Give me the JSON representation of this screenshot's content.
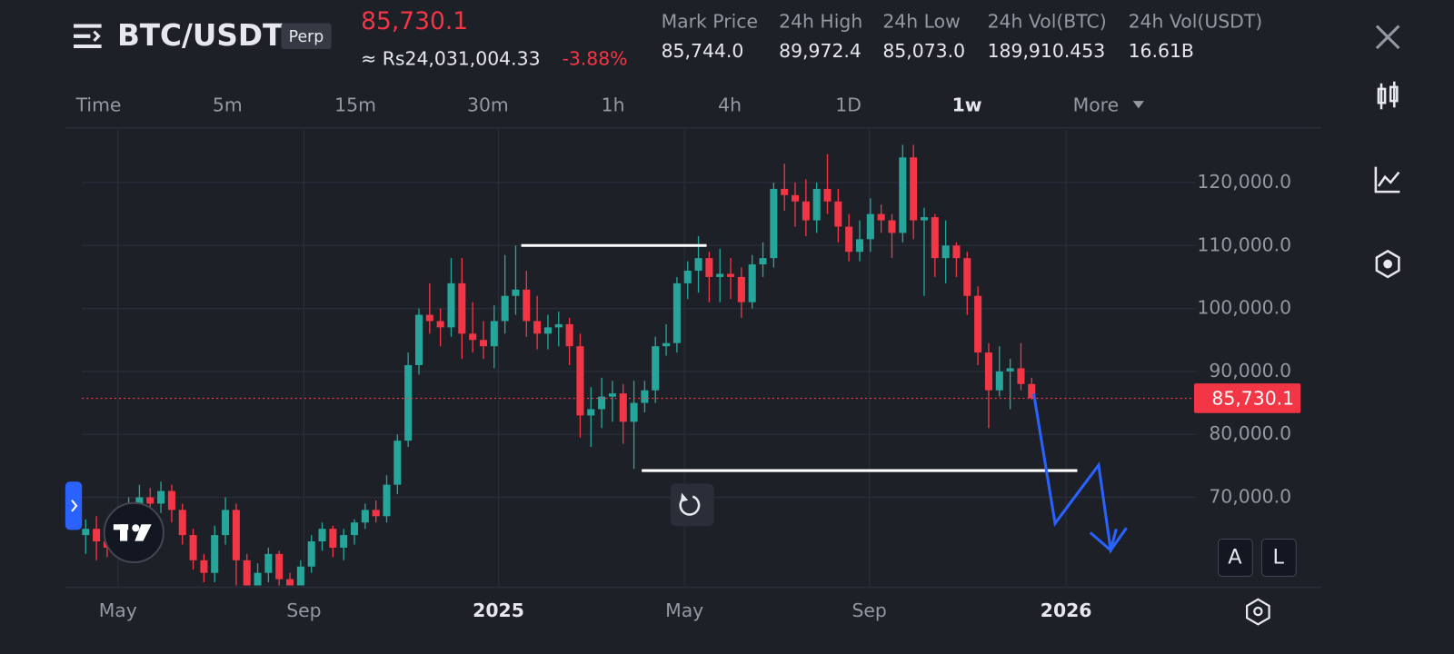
{
  "header": {
    "menu_symbol": "BTC/USDT",
    "badge": "Perp",
    "price": "85,730.1",
    "local_price": "≈ Rs24,031,004.33",
    "change": "-3.88%",
    "stats": [
      {
        "label": "Mark Price",
        "value": "85,744.0"
      },
      {
        "label": "24h High",
        "value": "89,972.4"
      },
      {
        "label": "24h Low",
        "value": "85,073.0"
      },
      {
        "label": "24h Vol(BTC)",
        "value": "189,910.453"
      },
      {
        "label": "24h Vol(USDT)",
        "value": "16.61B"
      }
    ]
  },
  "timeframes": {
    "items": [
      "Time",
      "5m",
      "15m",
      "30m",
      "1h",
      "4h",
      "1D",
      "1w",
      "More"
    ],
    "active": "1w"
  },
  "buttons": {
    "auto": "A",
    "log": "L"
  },
  "chart_data": {
    "type": "candlestick",
    "up_color": "#26a69a",
    "down_color": "#f23645",
    "open": [
      64000,
      65000,
      63000,
      62000,
      66000,
      68000,
      70000,
      69000,
      71000,
      68000,
      64000,
      60000,
      58000,
      64000,
      68000,
      60000,
      56000,
      58000,
      61000,
      57000,
      56000,
      59000,
      63000,
      65000,
      62000,
      64000,
      66000,
      68000,
      67000,
      72000,
      79000,
      91000,
      99000,
      98000,
      97000,
      104000,
      96000,
      95000,
      94000,
      98000,
      102000,
      103000,
      98000,
      96000,
      97000,
      97500,
      94000,
      83000,
      84000,
      86000,
      86500,
      82000,
      85000,
      87000,
      94000,
      94500,
      104000,
      106000,
      108000,
      105000,
      105500,
      105000,
      101000,
      107000,
      108000,
      119000,
      118000,
      117000,
      114000,
      119000,
      117000,
      113000,
      109000,
      111000,
      115000,
      114000,
      112000,
      124000,
      114000,
      114500,
      108000,
      110000,
      108000,
      102000,
      93000,
      87000,
      90000,
      90500,
      88000
    ],
    "high": [
      66500,
      67000,
      64500,
      67500,
      70000,
      72000,
      71500,
      72500,
      72000,
      69000,
      65000,
      61000,
      65500,
      70000,
      69000,
      61000,
      59500,
      62000,
      61500,
      58000,
      60000,
      64000,
      66000,
      65500,
      65000,
      66500,
      69000,
      69500,
      73500,
      80000,
      93000,
      100000,
      104000,
      100000,
      108000,
      108000,
      101000,
      98000,
      100500,
      108500,
      110000,
      106000,
      102000,
      99000,
      99500,
      98500,
      96000,
      87500,
      89000,
      88500,
      88000,
      88500,
      88500,
      95500,
      97500,
      105000,
      107500,
      111500,
      109000,
      109500,
      108000,
      106500,
      108500,
      110500,
      120000,
      123000,
      120000,
      120500,
      120000,
      124500,
      119000,
      115000,
      114000,
      117500,
      116500,
      115000,
      126000,
      126000,
      116000,
      115000,
      114000,
      110500,
      109000,
      103500,
      94500,
      94000,
      92000,
      94500,
      89000
    ],
    "low": [
      61000,
      60000,
      60500,
      60500,
      64500,
      66500,
      67000,
      67500,
      66000,
      62500,
      58500,
      56500,
      56500,
      62500,
      56000,
      54000,
      54500,
      56500,
      55500,
      54000,
      55000,
      58000,
      61500,
      60500,
      60000,
      62500,
      65000,
      66000,
      66000,
      70500,
      78000,
      89500,
      96000,
      94000,
      95500,
      92000,
      93000,
      92000,
      90500,
      96000,
      99000,
      95500,
      93500,
      93500,
      94000,
      91000,
      79500,
      78000,
      81000,
      82000,
      78500,
      74500,
      83500,
      85000,
      92500,
      93000,
      101500,
      102500,
      101000,
      101000,
      101500,
      98500,
      100000,
      105000,
      106500,
      115500,
      113000,
      111500,
      112000,
      115000,
      110500,
      107500,
      107500,
      109000,
      112000,
      108000,
      110500,
      111000,
      102000,
      105000,
      104000,
      105000,
      99000,
      91000,
      81000,
      86000,
      84000,
      87000,
      85500
    ],
    "close": [
      65000,
      63000,
      62000,
      66000,
      68000,
      70000,
      69000,
      71000,
      68000,
      64000,
      60000,
      58000,
      64000,
      68000,
      60000,
      56000,
      58000,
      61000,
      57000,
      56000,
      59000,
      63000,
      65000,
      62000,
      64000,
      66000,
      68000,
      67000,
      72000,
      79000,
      91000,
      99000,
      98000,
      97000,
      104000,
      96000,
      95000,
      94000,
      98000,
      102000,
      103000,
      98000,
      96000,
      97000,
      97500,
      94000,
      83000,
      84000,
      86000,
      86500,
      82000,
      85000,
      87000,
      94000,
      94500,
      104000,
      106000,
      108000,
      105000,
      105500,
      105000,
      101000,
      107000,
      108000,
      119000,
      118000,
      117000,
      114000,
      119000,
      117000,
      113000,
      109000,
      111000,
      115000,
      114000,
      112000,
      124000,
      114000,
      114500,
      108000,
      110000,
      108000,
      102000,
      93000,
      87000,
      90000,
      90500,
      88000,
      85730.1
    ],
    "last_price": {
      "value": 85730.1,
      "label": "85,730.1"
    },
    "xlim": [
      -0.345,
      103.28
    ],
    "xticks": [
      {
        "value": 3.0,
        "label": "May"
      },
      {
        "value": 20.3,
        "label": "Sep"
      },
      {
        "value": 38.4,
        "label": "2025"
      },
      {
        "value": 55.7,
        "label": "May"
      },
      {
        "value": 72.9,
        "label": "Sep"
      },
      {
        "value": 91.2,
        "label": "2026"
      }
    ],
    "ylim": [
      56000,
      128400
    ],
    "yticks": [
      {
        "value": 70000,
        "label": "70,000.0"
      },
      {
        "value": 80000,
        "label": "80,000.0"
      },
      {
        "value": 90000,
        "label": "90,000.0"
      },
      {
        "value": 100000,
        "label": "100,000.0"
      },
      {
        "value": 110000,
        "label": "110,000.0"
      },
      {
        "value": 120000,
        "label": "120,000.0"
      }
    ],
    "grid": true
  }
}
